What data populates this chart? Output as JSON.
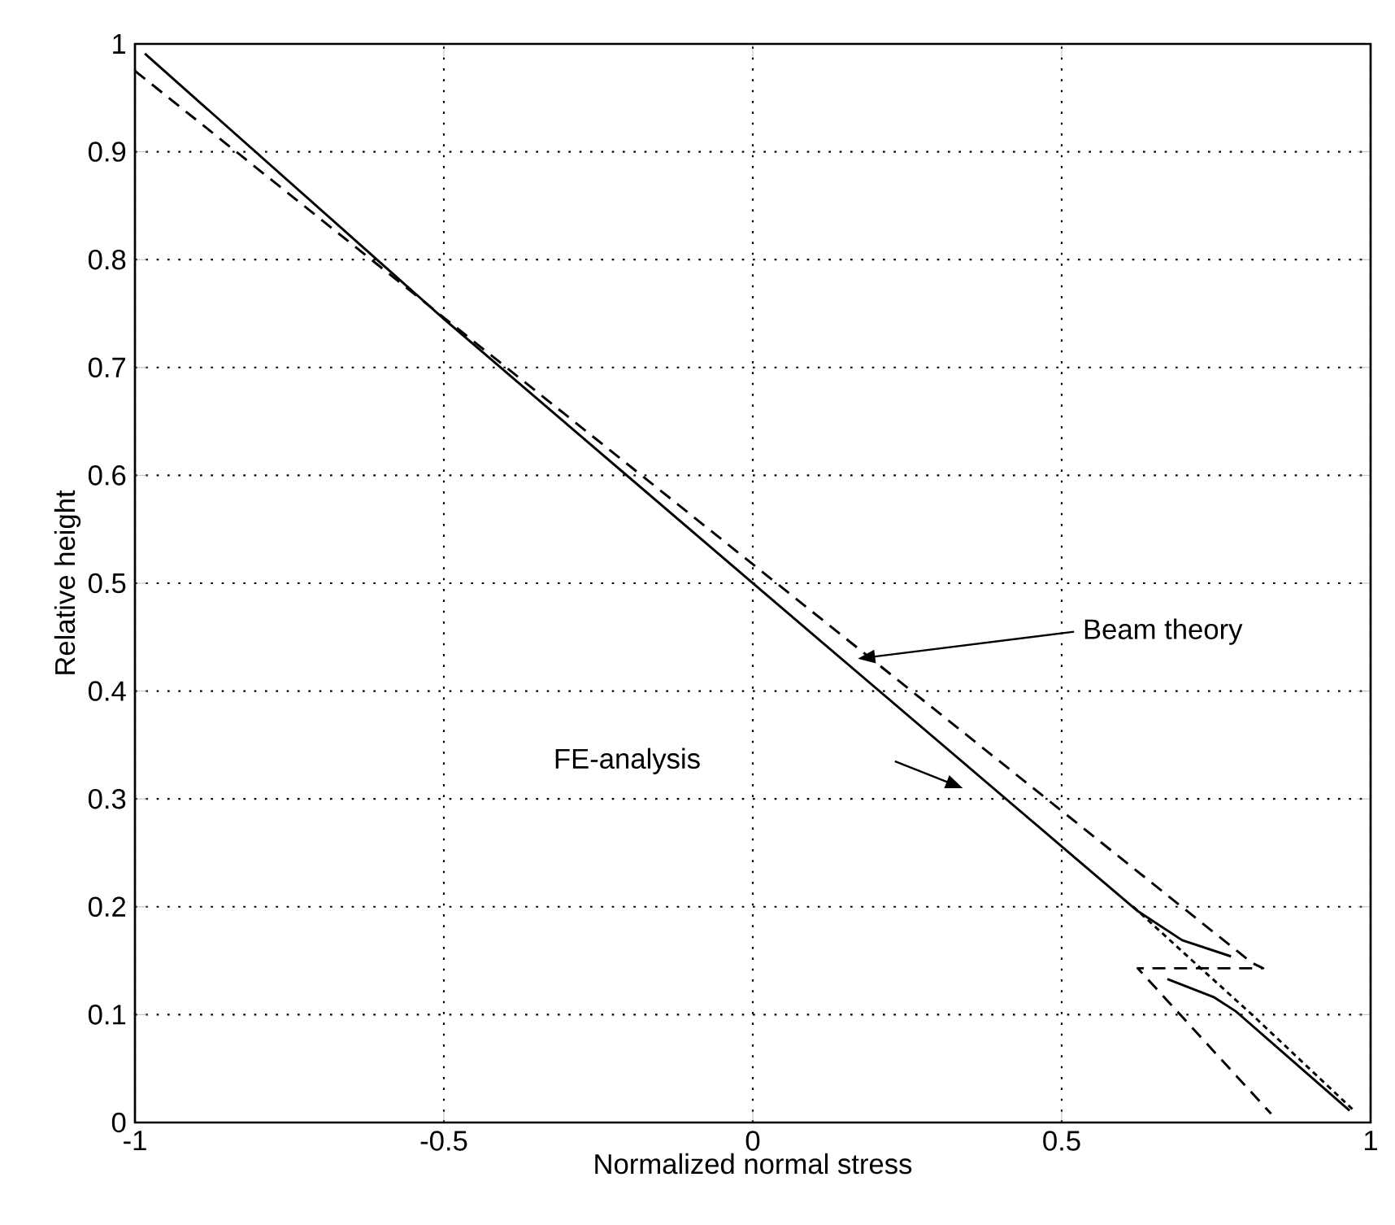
{
  "chart_data": {
    "type": "line",
    "xlabel": "Normalized normal stress",
    "ylabel": "Relative height",
    "xlim": [
      -1,
      1
    ],
    "ylim": [
      0,
      1
    ],
    "xticks": [
      -1,
      -0.5,
      0,
      0.5,
      1
    ],
    "yticks": [
      0,
      0.1,
      0.2,
      0.3,
      0.4,
      0.5,
      0.6,
      0.7,
      0.8,
      0.9,
      1
    ],
    "grid": true,
    "marker": "none",
    "series": [
      {
        "color": "#000000",
        "line_style": "solid",
        "x": [
          -0.984,
          -0.5,
          0,
          0.5,
          0.623,
          0.695,
          0.774,
          null,
          0.671,
          0.747,
          0.782,
          0.966
        ],
        "values": [
          0.991,
          0.745,
          0.5,
          0.256,
          0.196,
          0.169,
          0.154,
          null,
          0.133,
          0.116,
          0.103,
          0.011
        ]
      },
      {
        "color": "#000000",
        "line_style": "dashed",
        "x": [
          -1,
          0.808,
          0.826,
          0.623,
          0.839
        ],
        "values": [
          0.975,
          0.148,
          0.143,
          0.143,
          0.008
        ]
      },
      {
        "color": "#000000",
        "line_style": "dotted",
        "x": [
          0.616,
          0.7,
          0.808,
          0.975
        ],
        "values": [
          0.2,
          0.156,
          0.1,
          0.01
        ]
      }
    ],
    "annotations": [
      "Beam theory",
      "FE-analysis"
    ]
  }
}
